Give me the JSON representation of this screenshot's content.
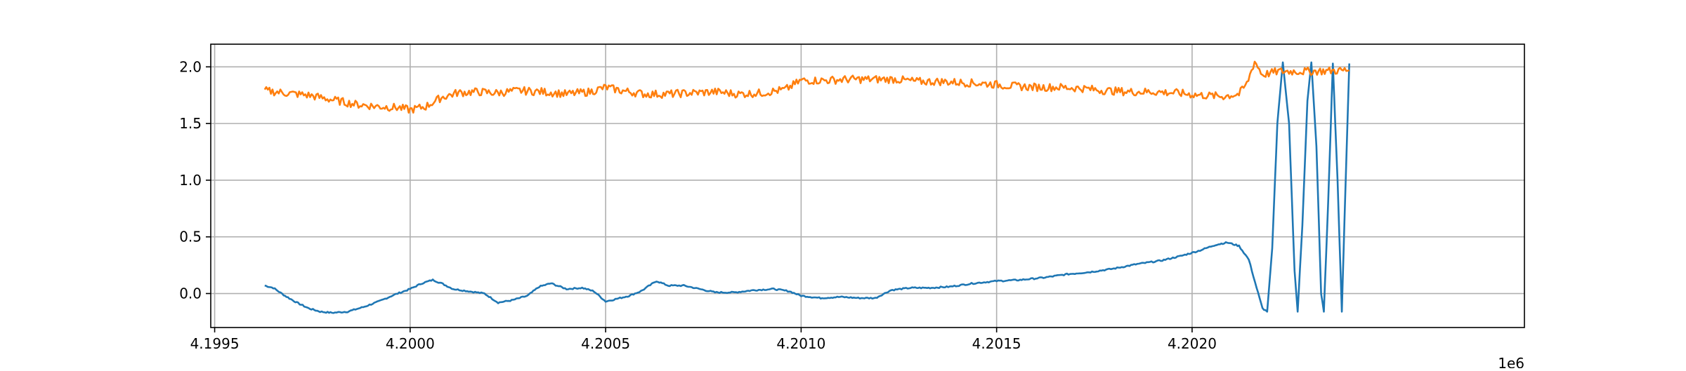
{
  "chart_data": {
    "type": "line",
    "title": "",
    "xlabel": "",
    "ylabel": "",
    "x_offset_label": "1e6",
    "xlim": [
      4199490,
      4202850
    ],
    "ylim": [
      -0.3,
      2.2
    ],
    "grid": true,
    "legend": "none",
    "x_ticks": [
      {
        "value": 4199500,
        "label": "4.1995"
      },
      {
        "value": 4200000,
        "label": "4.2000"
      },
      {
        "value": 4200500,
        "label": "4.2005"
      },
      {
        "value": 4201000,
        "label": "4.2010"
      },
      {
        "value": 4201500,
        "label": "4.2015"
      },
      {
        "value": 4202000,
        "label": "4.2020"
      }
    ],
    "y_ticks": [
      {
        "value": 0.0,
        "label": "0.0"
      },
      {
        "value": 0.5,
        "label": "0.5"
      },
      {
        "value": 1.0,
        "label": "1.0"
      },
      {
        "value": 1.5,
        "label": "1.5"
      },
      {
        "value": 2.0,
        "label": "2.0"
      }
    ],
    "series": [
      {
        "color": "#1f77b4",
        "points": [
          [
            4199628,
            0.07
          ],
          [
            4199650,
            0.05
          ],
          [
            4199680,
            -0.02
          ],
          [
            4199710,
            -0.08
          ],
          [
            4199740,
            -0.13
          ],
          [
            4199770,
            -0.16
          ],
          [
            4199800,
            -0.17
          ],
          [
            4199840,
            -0.16
          ],
          [
            4199880,
            -0.12
          ],
          [
            4199920,
            -0.07
          ],
          [
            4199960,
            -0.01
          ],
          [
            4200000,
            0.04
          ],
          [
            4200030,
            0.09
          ],
          [
            4200058,
            0.12
          ],
          [
            4200080,
            0.09
          ],
          [
            4200110,
            0.04
          ],
          [
            4200150,
            0.02
          ],
          [
            4200190,
            0.0
          ],
          [
            4200225,
            -0.08
          ],
          [
            4200260,
            -0.06
          ],
          [
            4200300,
            -0.02
          ],
          [
            4200330,
            0.06
          ],
          [
            4200360,
            0.09
          ],
          [
            4200400,
            0.04
          ],
          [
            4200440,
            0.05
          ],
          [
            4200470,
            0.02
          ],
          [
            4200500,
            -0.07
          ],
          [
            4200525,
            -0.05
          ],
          [
            4200560,
            -0.02
          ],
          [
            4200590,
            0.02
          ],
          [
            4200630,
            0.11
          ],
          [
            4200660,
            0.07
          ],
          [
            4200700,
            0.07
          ],
          [
            4200740,
            0.04
          ],
          [
            4200780,
            0.01
          ],
          [
            4200830,
            0.01
          ],
          [
            4200880,
            0.03
          ],
          [
            4200930,
            0.04
          ],
          [
            4200970,
            0.02
          ],
          [
            4201000,
            -0.02
          ],
          [
            4201050,
            -0.04
          ],
          [
            4201100,
            -0.03
          ],
          [
            4201150,
            -0.04
          ],
          [
            4201190,
            -0.04
          ],
          [
            4201230,
            0.03
          ],
          [
            4201280,
            0.05
          ],
          [
            4201330,
            0.05
          ],
          [
            4201380,
            0.06
          ],
          [
            4201440,
            0.09
          ],
          [
            4201500,
            0.11
          ],
          [
            4201560,
            0.12
          ],
          [
            4201620,
            0.14
          ],
          [
            4201680,
            0.17
          ],
          [
            4201740,
            0.19
          ],
          [
            4201800,
            0.22
          ],
          [
            4201860,
            0.26
          ],
          [
            4201920,
            0.29
          ],
          [
            4201970,
            0.33
          ],
          [
            4202020,
            0.38
          ],
          [
            4202060,
            0.43
          ],
          [
            4202090,
            0.45
          ],
          [
            4202120,
            0.42
          ],
          [
            4202145,
            0.3
          ],
          [
            4202165,
            0.05
          ],
          [
            4202180,
            -0.13
          ],
          [
            4202192,
            -0.16
          ],
          [
            4202205,
            0.4
          ],
          [
            4202218,
            1.5
          ],
          [
            4202232,
            2.04
          ],
          [
            4202248,
            1.5
          ],
          [
            4202262,
            0.2
          ],
          [
            4202270,
            -0.16
          ],
          [
            4202282,
            0.6
          ],
          [
            4202295,
            1.7
          ],
          [
            4202305,
            2.04
          ],
          [
            4202318,
            1.3
          ],
          [
            4202330,
            0.0
          ],
          [
            4202337,
            -0.16
          ],
          [
            4202348,
            0.8
          ],
          [
            4202360,
            2.03
          ],
          [
            4202372,
            1.0
          ],
          [
            4202383,
            -0.16
          ],
          [
            4202392,
            0.9
          ],
          [
            4202402,
            2.03
          ]
        ]
      },
      {
        "color": "#ff7f0e",
        "points": [
          [
            4199628,
            1.79
          ],
          [
            4199680,
            1.77
          ],
          [
            4199740,
            1.75
          ],
          [
            4199800,
            1.71
          ],
          [
            4199860,
            1.67
          ],
          [
            4199920,
            1.65
          ],
          [
            4199970,
            1.64
          ],
          [
            4200000,
            1.62
          ],
          [
            4200040,
            1.65
          ],
          [
            4200080,
            1.73
          ],
          [
            4200120,
            1.77
          ],
          [
            4200170,
            1.78
          ],
          [
            4200220,
            1.77
          ],
          [
            4200280,
            1.79
          ],
          [
            4200340,
            1.78
          ],
          [
            4200400,
            1.76
          ],
          [
            4200460,
            1.78
          ],
          [
            4200500,
            1.82
          ],
          [
            4200540,
            1.79
          ],
          [
            4200600,
            1.76
          ],
          [
            4200660,
            1.76
          ],
          [
            4200720,
            1.77
          ],
          [
            4200780,
            1.78
          ],
          [
            4200840,
            1.76
          ],
          [
            4200900,
            1.77
          ],
          [
            4200960,
            1.8
          ],
          [
            4201000,
            1.88
          ],
          [
            4201060,
            1.88
          ],
          [
            4201120,
            1.89
          ],
          [
            4201180,
            1.89
          ],
          [
            4201240,
            1.89
          ],
          [
            4201300,
            1.87
          ],
          [
            4201360,
            1.87
          ],
          [
            4201420,
            1.86
          ],
          [
            4201480,
            1.85
          ],
          [
            4201540,
            1.83
          ],
          [
            4201600,
            1.82
          ],
          [
            4201660,
            1.82
          ],
          [
            4201720,
            1.81
          ],
          [
            4201780,
            1.79
          ],
          [
            4201840,
            1.78
          ],
          [
            4201900,
            1.78
          ],
          [
            4201960,
            1.77
          ],
          [
            4202020,
            1.75
          ],
          [
            4202080,
            1.74
          ],
          [
            4202120,
            1.76
          ],
          [
            4202140,
            1.85
          ],
          [
            4202160,
            2.05
          ],
          [
            4202180,
            1.93
          ],
          [
            4202220,
            1.96
          ],
          [
            4202300,
            1.96
          ],
          [
            4202402,
            1.97
          ]
        ]
      }
    ]
  }
}
